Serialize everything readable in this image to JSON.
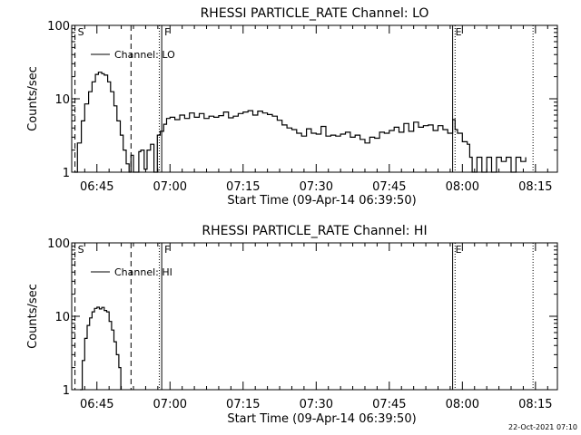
{
  "footer": {
    "timestamp": "22-Oct-2021 07:10"
  },
  "chart_data": [
    {
      "type": "line",
      "title": "RHESSI PARTICLE_RATE Channel: LO",
      "xlabel": "Start Time (09-Apr-14 06:39:50)",
      "ylabel": "Counts/sec",
      "yscale": "log",
      "ylim": [
        1,
        100
      ],
      "xlim_minutes": [
        399.83,
        499.5
      ],
      "xticks": [
        "06:45",
        "07:00",
        "07:15",
        "07:30",
        "07:45",
        "08:00",
        "08:15"
      ],
      "yticks": [
        "1",
        "10",
        "100"
      ],
      "legend": "Channel: LO",
      "markers": [
        {
          "label": "S",
          "style": "dashed",
          "time_min": 400.5
        },
        {
          "label": "",
          "style": "dashed",
          "time_min": 412.0
        },
        {
          "label": "",
          "style": "dotted",
          "time_min": 417.8
        },
        {
          "label": "F",
          "style": "solid",
          "time_min": 418.3
        },
        {
          "label": "E",
          "style": "solid",
          "time_min": 478.0
        },
        {
          "label": "",
          "style": "dotted",
          "time_min": 478.5
        },
        {
          "label": "",
          "style": "dotted",
          "time_min": 494.5
        }
      ],
      "series": [
        {
          "name": "Channel: LO",
          "x": [
            400.3,
            401.0,
            401.8,
            402.5,
            403.3,
            404.0,
            404.7,
            405.3,
            406.0,
            406.5,
            407.2,
            407.8,
            408.5,
            409.1,
            409.8,
            410.4,
            411.0,
            411.6,
            412.0,
            412.5,
            413.0,
            413.6,
            414.0,
            414.7,
            415.3,
            416.0,
            416.7,
            417.4,
            418.0,
            418.7,
            419.3,
            420.0,
            421.0,
            422.0,
            423.0,
            424.0,
            425.0,
            426.0,
            427.0,
            428.0,
            429.0,
            430.0,
            431.0,
            432.0,
            433.0,
            434.0,
            435.0,
            436.0,
            437.0,
            438.0,
            439.0,
            440.0,
            441.0,
            442.0,
            443.0,
            444.0,
            445.0,
            446.0,
            447.0,
            448.0,
            449.0,
            450.0,
            451.0,
            452.0,
            453.0,
            454.0,
            455.0,
            456.0,
            457.0,
            458.0,
            459.0,
            460.0,
            461.0,
            462.0,
            463.0,
            464.0,
            465.0,
            466.0,
            467.0,
            468.0,
            469.0,
            470.0,
            471.0,
            472.0,
            473.0,
            474.0,
            475.0,
            476.0,
            477.0,
            478.0,
            478.5,
            479.0,
            480.0,
            481.0,
            481.5,
            482.0,
            483.0,
            484.0,
            485.0,
            486.0,
            487.0,
            488.0,
            489.0,
            490.0,
            491.0,
            492.0,
            493.0
          ],
          "y": [
            1.0,
            2.5,
            5.0,
            8.5,
            12.5,
            17.0,
            21.5,
            23.0,
            22.0,
            21.0,
            17.0,
            12.5,
            8.0,
            5.0,
            3.2,
            2.0,
            1.3,
            1.0,
            1.7,
            1.0,
            1.0,
            1.9,
            2.0,
            1.1,
            2.0,
            2.4,
            1.0,
            3.2,
            3.6,
            4.5,
            5.4,
            5.6,
            5.2,
            6.0,
            5.4,
            6.4,
            5.6,
            6.3,
            5.4,
            5.8,
            5.6,
            5.9,
            6.6,
            5.5,
            5.8,
            6.3,
            6.6,
            6.9,
            6.0,
            6.8,
            6.4,
            6.1,
            5.8,
            5.1,
            4.4,
            4.0,
            3.8,
            3.4,
            3.1,
            3.9,
            3.4,
            3.3,
            4.2,
            3.1,
            3.2,
            3.1,
            3.3,
            3.5,
            3.0,
            3.2,
            2.8,
            2.5,
            3.0,
            2.9,
            3.5,
            3.4,
            3.7,
            4.1,
            3.5,
            4.6,
            3.6,
            4.8,
            4.1,
            4.3,
            4.4,
            3.7,
            4.3,
            3.8,
            3.4,
            5.2,
            3.8,
            3.4,
            2.6,
            2.4,
            1.6,
            1.0,
            1.6,
            1.0,
            1.6,
            1.0,
            1.6,
            1.4,
            1.6,
            1.0,
            1.6,
            1.4,
            1.6
          ]
        }
      ]
    },
    {
      "type": "line",
      "title": "RHESSI PARTICLE_RATE Channel: HI",
      "xlabel": "Start Time (09-Apr-14 06:39:50)",
      "ylabel": "Counts/sec",
      "yscale": "log",
      "ylim": [
        1,
        100
      ],
      "xlim_minutes": [
        399.83,
        499.5
      ],
      "xticks": [
        "06:45",
        "07:00",
        "07:15",
        "07:30",
        "07:45",
        "08:00",
        "08:15"
      ],
      "yticks": [
        "1",
        "10",
        "100"
      ],
      "legend": "Channel: HI",
      "markers": [
        {
          "label": "S",
          "style": "dashed",
          "time_min": 400.5
        },
        {
          "label": "",
          "style": "dashed",
          "time_min": 412.0
        },
        {
          "label": "",
          "style": "dotted",
          "time_min": 417.8
        },
        {
          "label": "F",
          "style": "solid",
          "time_min": 418.3
        },
        {
          "label": "E",
          "style": "solid",
          "time_min": 478.0
        },
        {
          "label": "",
          "style": "dotted",
          "time_min": 478.5
        },
        {
          "label": "",
          "style": "dotted",
          "time_min": 494.5
        }
      ],
      "series": [
        {
          "name": "Channel: HI",
          "x": [
            401.5,
            402.0,
            402.5,
            403.0,
            403.5,
            404.0,
            404.5,
            405.0,
            405.5,
            406.0,
            406.5,
            407.0,
            407.5,
            408.0,
            408.5,
            409.0,
            409.5,
            409.9
          ],
          "y": [
            1.0,
            2.5,
            5.0,
            7.5,
            9.5,
            11.5,
            12.8,
            13.3,
            12.6,
            13.2,
            12.0,
            11.5,
            8.5,
            6.5,
            4.5,
            3.0,
            2.0,
            1.0
          ]
        }
      ]
    }
  ]
}
